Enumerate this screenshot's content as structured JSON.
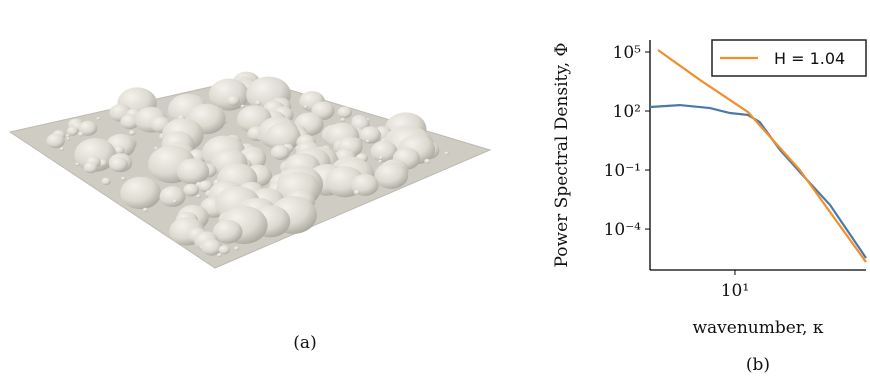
{
  "captions": [
    "(a)",
    "(b)"
  ],
  "chart_data": {
    "type": "line",
    "xlabel": "wavenumber, κ",
    "ylabel": "Power Spectral Density, Φ",
    "xscale": "log",
    "yscale": "log",
    "xlim": [
      3.76,
      45.2
    ],
    "ylim": [
      8.3e-07,
      407000
    ],
    "xticks": [
      {
        "value": 10,
        "label": "10¹"
      }
    ],
    "yticks": [
      {
        "value": 100000,
        "label": "10⁵"
      },
      {
        "value": 100,
        "label": "10²"
      },
      {
        "value": 0.1,
        "label": "10⁻¹"
      },
      {
        "value": 0.0001,
        "label": "10⁻⁴"
      }
    ],
    "legend": "upper right",
    "series": [
      {
        "color": "#4a79a5",
        "x": [
          3.76,
          5.3,
          7.5,
          9.44,
          11.6,
          13.3,
          16.8,
          21.1,
          29.9,
          45.2
        ],
        "values": [
          160,
          200,
          141,
          79,
          63,
          27.5,
          1.05,
          0.079,
          0.00166,
          3.4e-06
        ]
      },
      {
        "name": "H = 1.04",
        "color": "#f28e2b",
        "x": [
          4.12,
          6.68,
          11.6,
          21.1,
          45.2
        ],
        "values": [
          126000,
          3800,
          89,
          0.1,
          2.1e-06
        ]
      }
    ]
  }
}
